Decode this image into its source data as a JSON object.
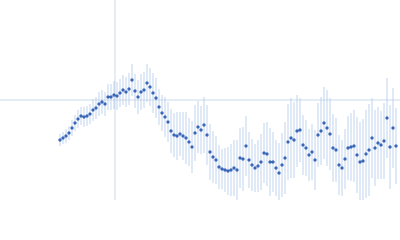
{
  "chart_data": {
    "type": "scatter",
    "x": [
      -55,
      -52,
      -49,
      -46,
      -43,
      -40,
      -37,
      -34,
      -31,
      -28,
      -25,
      -22,
      -19,
      -16,
      -13,
      -10,
      -7,
      -4,
      -1,
      2,
      5,
      8,
      11,
      14,
      17,
      20,
      23,
      26,
      29,
      32,
      35,
      38,
      41,
      44,
      47,
      50,
      53,
      56,
      59,
      62,
      65,
      68,
      71,
      74,
      77,
      80,
      83,
      86,
      89,
      92,
      95,
      98,
      101,
      104,
      107,
      110,
      113,
      116,
      119,
      122,
      125,
      128,
      131,
      134,
      137,
      140,
      143,
      146,
      149,
      152,
      155,
      158,
      161,
      164,
      167,
      170,
      173,
      176,
      179,
      182,
      185,
      188,
      191,
      194,
      197,
      200,
      203,
      206,
      209,
      212,
      215,
      218,
      221,
      224,
      227,
      230,
      233,
      236,
      239,
      242,
      245,
      248,
      251,
      254,
      257,
      260,
      263,
      266,
      269,
      272,
      275,
      278,
      281
    ],
    "series": [
      {
        "color": "#3a66b8",
        "error_color": "#b3c9e8",
        "values": [
          -40,
          -38,
          -36,
          -33,
          -28,
          -23,
          -19,
          -16,
          -17,
          -16,
          -14,
          -10,
          -8,
          -4,
          -2,
          -4,
          3,
          3,
          5,
          4,
          7,
          10,
          8,
          11,
          20,
          9,
          3,
          8,
          10,
          17,
          13,
          7,
          2,
          -7,
          -13,
          -17,
          -22,
          -31,
          -35,
          -36,
          -34,
          -36,
          -38,
          -42,
          -47,
          -33,
          -27,
          -30,
          -25,
          -35,
          -52,
          -57,
          -60,
          -67,
          -69,
          -70,
          -71,
          -70,
          -68,
          -70,
          -58,
          -59,
          -46,
          -60,
          -65,
          -68,
          -66,
          -62,
          -53,
          -54,
          -62,
          -62,
          -68,
          -73,
          -65,
          -58,
          -42,
          -38,
          -40,
          -31,
          -30,
          -45,
          -48,
          -55,
          -52,
          -60,
          -35,
          -31,
          -23,
          -28,
          -34,
          -48,
          -50,
          -65,
          -68,
          -59,
          -48,
          -47,
          -46,
          -55,
          -62,
          -61,
          -54,
          -50,
          -38,
          -48,
          -43,
          -45,
          -41,
          -18,
          -47,
          -28,
          -46
        ],
        "errors": [
          6,
          6,
          7,
          7,
          8,
          8,
          9,
          9,
          10,
          10,
          10,
          11,
          11,
          12,
          12,
          12,
          13,
          13,
          14,
          14,
          14,
          15,
          15,
          16,
          16,
          17,
          17,
          18,
          18,
          19,
          19,
          20,
          20,
          18,
          18,
          20,
          20,
          22,
          22,
          24,
          22,
          24,
          26,
          24,
          26,
          28,
          26,
          24,
          28,
          30,
          28,
          26,
          24,
          22,
          20,
          22,
          24,
          26,
          28,
          30,
          30,
          32,
          30,
          28,
          26,
          24,
          26,
          28,
          30,
          32,
          34,
          30,
          28,
          30,
          32,
          36,
          38,
          40,
          38,
          36,
          32,
          30,
          28,
          26,
          28,
          30,
          32,
          34,
          36,
          38,
          36,
          34,
          32,
          30,
          28,
          30,
          32,
          34,
          36,
          38,
          40,
          42,
          44,
          46,
          40,
          38,
          36,
          34,
          38,
          40,
          42,
          40,
          38
        ]
      }
    ],
    "xlim": [
      -115,
      285
    ],
    "ylim": [
      -100,
      100
    ],
    "xticks": [
      0
    ],
    "yticks": [
      0
    ],
    "axis_color": "#c9d9ee"
  }
}
